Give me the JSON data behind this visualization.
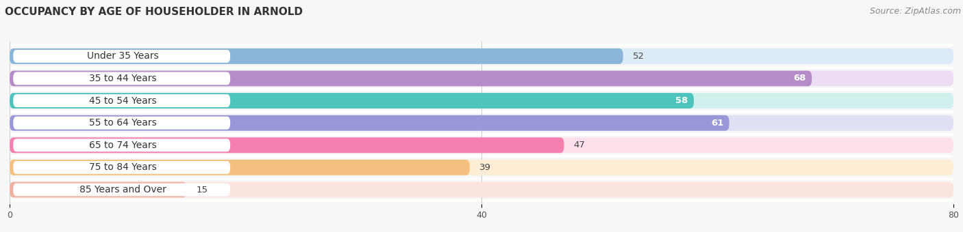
{
  "title": "OCCUPANCY BY AGE OF HOUSEHOLDER IN ARNOLD",
  "source": "Source: ZipAtlas.com",
  "categories": [
    "Under 35 Years",
    "35 to 44 Years",
    "45 to 54 Years",
    "55 to 64 Years",
    "65 to 74 Years",
    "75 to 84 Years",
    "85 Years and Over"
  ],
  "values": [
    52,
    68,
    58,
    61,
    47,
    39,
    15
  ],
  "bar_colors": [
    "#8ab4d8",
    "#b48cc8",
    "#4ec4bc",
    "#9898d8",
    "#f580b0",
    "#f5c080",
    "#f0b0a0"
  ],
  "bar_bg_colors": [
    "#ddeaf8",
    "#ecddf5",
    "#d0f0ee",
    "#e0e0f4",
    "#fde0ec",
    "#feecd4",
    "#fce4de"
  ],
  "label_bg_color": "#ffffff",
  "xlim": [
    0,
    80
  ],
  "xticks": [
    0,
    40,
    80
  ],
  "bar_height": 0.7,
  "bar_gap": 0.3,
  "label_fontsize": 10,
  "value_fontsize": 9.5,
  "title_fontsize": 11,
  "source_fontsize": 9,
  "bg_color": "#f7f7f7"
}
